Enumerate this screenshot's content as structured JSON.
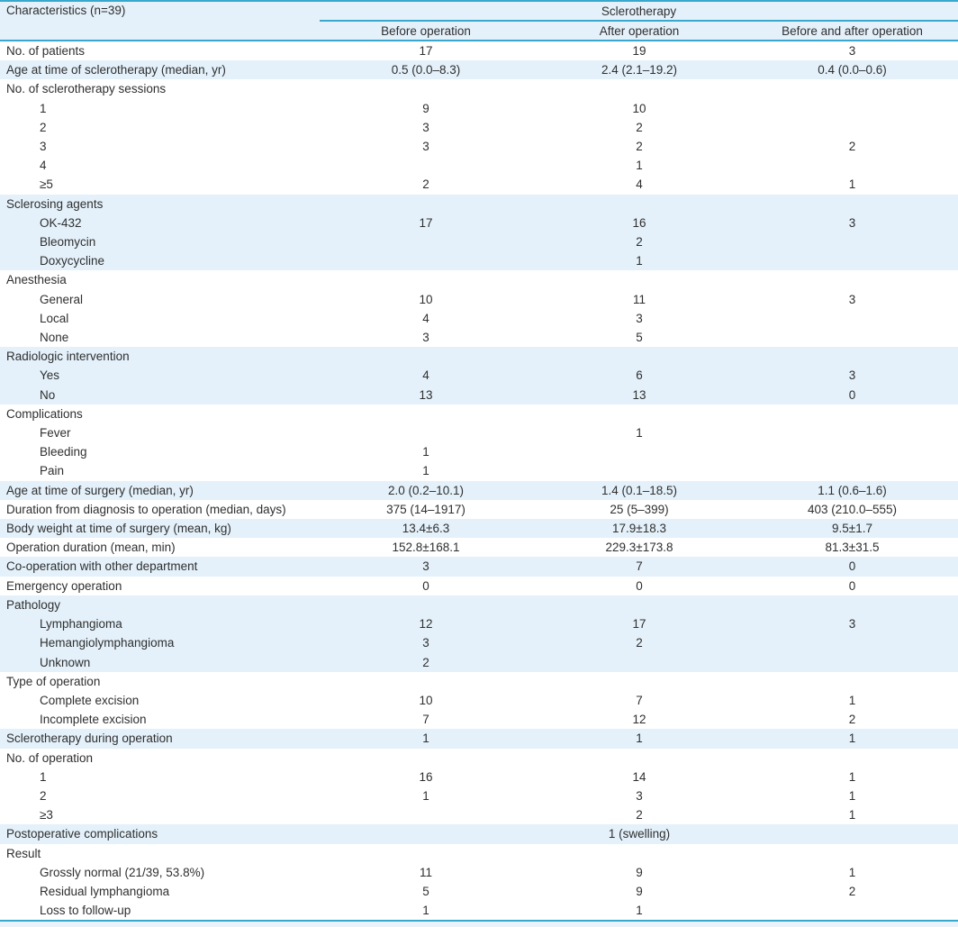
{
  "colors": {
    "accent": "#38a8ce",
    "row_shade": "#e4f1fa",
    "bottom_strip": "#eaf3f9",
    "text": "#2f2f2f"
  },
  "table": {
    "header": {
      "characteristics": "Characteristics (n=39)",
      "group": "Sclerotherapy",
      "columns": [
        "Before operation",
        "After operation",
        "Before and after operation"
      ]
    },
    "rows": [
      {
        "label": "No. of patients",
        "indent": false,
        "shade": false,
        "values": [
          "17",
          "19",
          "3"
        ]
      },
      {
        "label": "Age at time of sclerotherapy (median, yr)",
        "indent": false,
        "shade": true,
        "values": [
          "0.5 (0.0–8.3)",
          "2.4 (2.1–19.2)",
          "0.4 (0.0–0.6)"
        ]
      },
      {
        "label": "No. of sclerotherapy sessions",
        "indent": false,
        "shade": false,
        "values": [
          "",
          "",
          ""
        ]
      },
      {
        "label": "1",
        "indent": true,
        "shade": false,
        "values": [
          "9",
          "10",
          ""
        ]
      },
      {
        "label": "2",
        "indent": true,
        "shade": false,
        "values": [
          "3",
          "2",
          ""
        ]
      },
      {
        "label": "3",
        "indent": true,
        "shade": false,
        "values": [
          "3",
          "2",
          "2"
        ]
      },
      {
        "label": "4",
        "indent": true,
        "shade": false,
        "values": [
          "",
          "1",
          ""
        ]
      },
      {
        "label": "≥5",
        "indent": true,
        "shade": false,
        "values": [
          "2",
          "4",
          "1"
        ]
      },
      {
        "label": "Sclerosing agents",
        "indent": false,
        "shade": true,
        "values": [
          "",
          "",
          ""
        ]
      },
      {
        "label": "OK-432",
        "indent": true,
        "shade": true,
        "values": [
          "17",
          "16",
          "3"
        ]
      },
      {
        "label": "Bleomycin",
        "indent": true,
        "shade": true,
        "values": [
          "",
          "2",
          ""
        ]
      },
      {
        "label": "Doxycycline",
        "indent": true,
        "shade": true,
        "values": [
          "",
          "1",
          ""
        ]
      },
      {
        "label": "Anesthesia",
        "indent": false,
        "shade": false,
        "values": [
          "",
          "",
          ""
        ]
      },
      {
        "label": "General",
        "indent": true,
        "shade": false,
        "values": [
          "10",
          "11",
          "3"
        ]
      },
      {
        "label": "Local",
        "indent": true,
        "shade": false,
        "values": [
          "4",
          "3",
          ""
        ]
      },
      {
        "label": "None",
        "indent": true,
        "shade": false,
        "values": [
          "3",
          "5",
          ""
        ]
      },
      {
        "label": "Radiologic intervention",
        "indent": false,
        "shade": true,
        "values": [
          "",
          "",
          ""
        ]
      },
      {
        "label": "Yes",
        "indent": true,
        "shade": true,
        "values": [
          "4",
          "6",
          "3"
        ]
      },
      {
        "label": "No",
        "indent": true,
        "shade": true,
        "values": [
          "13",
          "13",
          "0"
        ]
      },
      {
        "label": "Complications",
        "indent": false,
        "shade": false,
        "values": [
          "",
          "",
          ""
        ]
      },
      {
        "label": "Fever",
        "indent": true,
        "shade": false,
        "values": [
          "",
          "1",
          ""
        ]
      },
      {
        "label": "Bleeding",
        "indent": true,
        "shade": false,
        "values": [
          "1",
          "",
          ""
        ]
      },
      {
        "label": "Pain",
        "indent": true,
        "shade": false,
        "values": [
          "1",
          "",
          ""
        ]
      },
      {
        "label": "Age at time of surgery (median, yr)",
        "indent": false,
        "shade": true,
        "values": [
          "2.0 (0.2–10.1)",
          "1.4 (0.1–18.5)",
          "1.1 (0.6–1.6)"
        ]
      },
      {
        "label": "Duration from diagnosis to operation (median, days)",
        "indent": false,
        "shade": false,
        "values": [
          "375 (14–1917)",
          "25 (5–399)",
          "403 (210.0–555)"
        ]
      },
      {
        "label": "Body weight at time of surgery (mean, kg)",
        "indent": false,
        "shade": true,
        "values": [
          "13.4±6.3",
          "17.9±18.3",
          "9.5±1.7"
        ]
      },
      {
        "label": "Operation duration (mean, min)",
        "indent": false,
        "shade": false,
        "values": [
          "152.8±168.1",
          "229.3±173.8",
          "81.3±31.5"
        ]
      },
      {
        "label": "Co-operation with other department",
        "indent": false,
        "shade": true,
        "values": [
          "3",
          "7",
          "0"
        ]
      },
      {
        "label": "Emergency operation",
        "indent": false,
        "shade": false,
        "values": [
          "0",
          "0",
          "0"
        ]
      },
      {
        "label": "Pathology",
        "indent": false,
        "shade": true,
        "values": [
          "",
          "",
          ""
        ]
      },
      {
        "label": "Lymphangioma",
        "indent": true,
        "shade": true,
        "values": [
          "12",
          "17",
          "3"
        ]
      },
      {
        "label": "Hemangiolymphangioma",
        "indent": true,
        "shade": true,
        "values": [
          "3",
          "2",
          ""
        ]
      },
      {
        "label": "Unknown",
        "indent": true,
        "shade": true,
        "values": [
          "2",
          "",
          ""
        ]
      },
      {
        "label": "Type of operation",
        "indent": false,
        "shade": false,
        "values": [
          "",
          "",
          ""
        ]
      },
      {
        "label": "Complete excision",
        "indent": true,
        "shade": false,
        "values": [
          "10",
          "7",
          "1"
        ]
      },
      {
        "label": "Incomplete excision",
        "indent": true,
        "shade": false,
        "values": [
          "7",
          "12",
          "2"
        ]
      },
      {
        "label": "Sclerotherapy during operation",
        "indent": false,
        "shade": true,
        "values": [
          "1",
          "1",
          "1"
        ]
      },
      {
        "label": "No. of operation",
        "indent": false,
        "shade": false,
        "values": [
          "",
          "",
          ""
        ]
      },
      {
        "label": "1",
        "indent": true,
        "shade": false,
        "values": [
          "16",
          "14",
          "1"
        ]
      },
      {
        "label": "2",
        "indent": true,
        "shade": false,
        "values": [
          "1",
          "3",
          "1"
        ]
      },
      {
        "label": "≥3",
        "indent": true,
        "shade": false,
        "values": [
          "",
          "2",
          "1"
        ]
      },
      {
        "label": "Postoperative complications",
        "indent": false,
        "shade": true,
        "values": [
          "",
          "1 (swelling)",
          ""
        ]
      },
      {
        "label": "Result",
        "indent": false,
        "shade": false,
        "values": [
          "",
          "",
          ""
        ]
      },
      {
        "label": "Grossly normal (21/39, 53.8%)",
        "indent": true,
        "shade": false,
        "values": [
          "11",
          "9",
          "1"
        ]
      },
      {
        "label": "Residual lymphangioma",
        "indent": true,
        "shade": false,
        "values": [
          "5",
          "9",
          "2"
        ]
      },
      {
        "label": "Loss to follow-up",
        "indent": true,
        "shade": false,
        "values": [
          "1",
          "1",
          ""
        ]
      }
    ]
  }
}
